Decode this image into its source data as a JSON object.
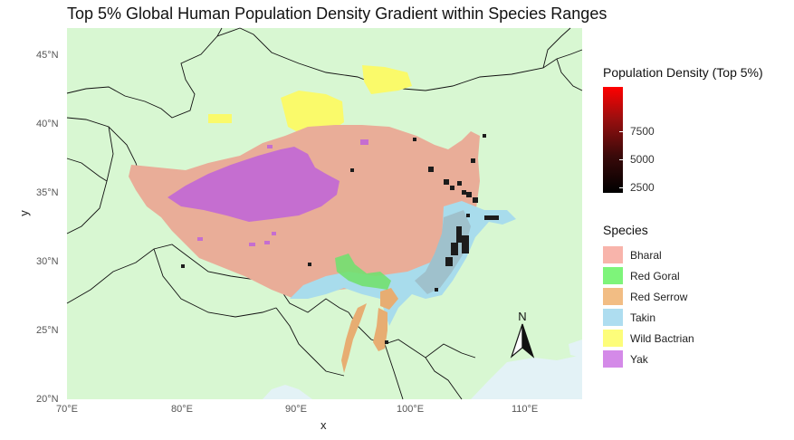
{
  "title": "Top 5% Global Human Population Density Gradient within Species Ranges",
  "axes": {
    "x_title": "x",
    "y_title": "y",
    "x_ticks": [
      "70°E",
      "80°E",
      "90°E",
      "100°E",
      "110°E"
    ],
    "y_ticks": [
      "20°N",
      "25°N",
      "30°N",
      "35°N",
      "40°N",
      "45°N"
    ]
  },
  "extent": {
    "lon": [
      70,
      115
    ],
    "lat": [
      20,
      47
    ]
  },
  "density_legend": {
    "title": "Population Density (Top 5%)",
    "ticks": [
      "7500",
      "5000",
      "2500"
    ],
    "range": [
      0,
      9500
    ],
    "colors": [
      "#000000",
      "#ff0000"
    ]
  },
  "species_legend": {
    "title": "Species",
    "items": [
      {
        "label": "Bharal",
        "color": "#f8b4ab"
      },
      {
        "label": "Red Goral",
        "color": "#7ef47a"
      },
      {
        "label": "Red Serrow",
        "color": "#f2bd84"
      },
      {
        "label": "Takin",
        "color": "#aeddf0"
      },
      {
        "label": "Wild Bactrian",
        "color": "#fdfd7a"
      },
      {
        "label": "Yak",
        "color": "#d48ae8"
      }
    ]
  },
  "north_arrow_label": "N",
  "colors": {
    "land": "#d8f7d2",
    "sea": "#e3f2f6",
    "border": "#111111",
    "bharal_fill": "#e9ad98",
    "yak_fill": "#c56ed0",
    "takin_fill": "#9fc1cc",
    "takin_light": "#a8dcec",
    "red_goral_fill": "#72e070",
    "red_serrow_fill": "#e7ad72",
    "wild_bactrian_fill": "#fafa6a"
  }
}
